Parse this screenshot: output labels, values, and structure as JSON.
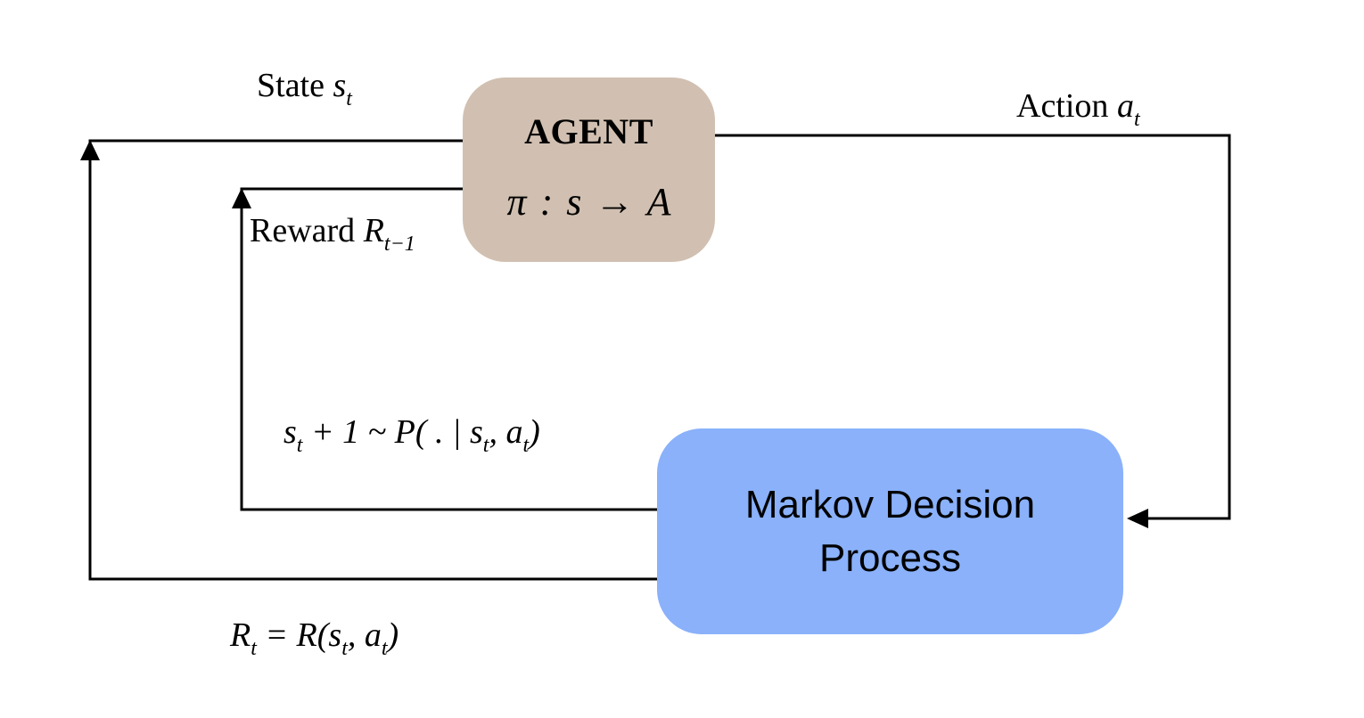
{
  "colors": {
    "agent_fill": "#d1c0b1",
    "mdp_fill": "#8ab1fa",
    "line": "#000000"
  },
  "agent": {
    "title": "AGENT",
    "policy": "π : s → A"
  },
  "mdp": {
    "title": "Markov Decision Process"
  },
  "labels": {
    "state": {
      "text": "State",
      "math": "s",
      "sub": "t"
    },
    "action": {
      "text": "Action",
      "math": "a",
      "sub": "t"
    },
    "reward": {
      "text": "Reward",
      "math": "R",
      "sub": "t−1"
    },
    "transition": "s_t + 1 ~ P( . | s_t, a_t)",
    "reward_fn": "R_t = R(s_t, a_t)"
  }
}
